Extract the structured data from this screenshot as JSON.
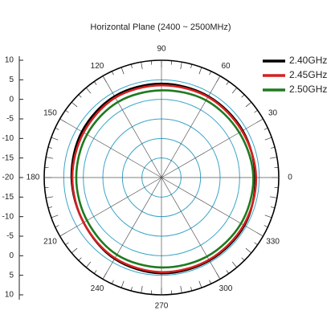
{
  "chart_data": {
    "type": "polar",
    "title": "Horizontal Plane (2400 ~ 2500MHz)",
    "x": [
      0,
      30,
      60,
      90,
      120,
      150,
      180,
      210,
      240,
      270,
      300,
      330
    ],
    "xticks": [
      0,
      30,
      60,
      90,
      120,
      150,
      180,
      210,
      240,
      270,
      300,
      330
    ],
    "ylim": [
      -20,
      10
    ],
    "yticks": [
      -20,
      -15,
      -10,
      -5,
      0,
      5,
      10
    ],
    "grid": true,
    "legend": "upper right",
    "series": [
      {
        "name": "2.40GHz",
        "color": "#000000",
        "values": [
          4,
          4,
          4,
          4,
          4,
          3.5,
          3,
          3,
          4,
          4.5,
          4.5,
          4.5
        ]
      },
      {
        "name": "2.45GHz",
        "color": "#d42020",
        "values": [
          4.2,
          3.8,
          3.8,
          3.6,
          3.6,
          3,
          2.8,
          3,
          3.8,
          4.2,
          4.3,
          4.3
        ]
      },
      {
        "name": "2.50GHz",
        "color": "#1f7a1f",
        "values": [
          3.5,
          3,
          2.8,
          2.3,
          2.3,
          2,
          1.8,
          2,
          2.8,
          3,
          3.3,
          3.5
        ]
      }
    ]
  }
}
